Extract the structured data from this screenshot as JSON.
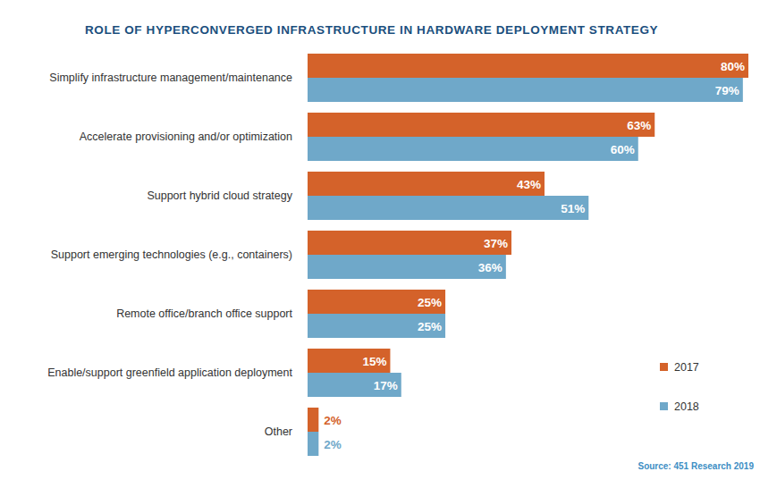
{
  "chart_data": {
    "type": "bar",
    "orientation": "horizontal",
    "title": "ROLE OF HYPERCONVERGED INFRASTRUCTURE IN HARDWARE DEPLOYMENT STRATEGY",
    "source": "Source: 451 Research 2019",
    "categories": [
      "Simplify infrastructure management/maintenance",
      "Accelerate provisioning and/or optimization",
      "Support hybrid cloud strategy",
      "Support emerging technologies (e.g., containers)",
      "Remote office/branch office support",
      "Enable/support greenfield application deployment",
      "Other"
    ],
    "series": [
      {
        "name": "2017",
        "color": "#d4622a",
        "values": [
          80,
          63,
          43,
          37,
          25,
          15,
          2
        ],
        "value_labels": [
          "80%",
          "63%",
          "43%",
          "37%",
          "25%",
          "15%",
          "2%"
        ]
      },
      {
        "name": "2018",
        "color": "#6fa8c9",
        "values": [
          79,
          60,
          51,
          36,
          25,
          17,
          2
        ],
        "value_labels": [
          "79%",
          "60%",
          "51%",
          "36%",
          "25%",
          "17%",
          "2%"
        ]
      }
    ],
    "xlim": [
      0,
      80
    ],
    "tick_labels": false,
    "data_labels": true,
    "legend": "lower right",
    "grid": false
  }
}
